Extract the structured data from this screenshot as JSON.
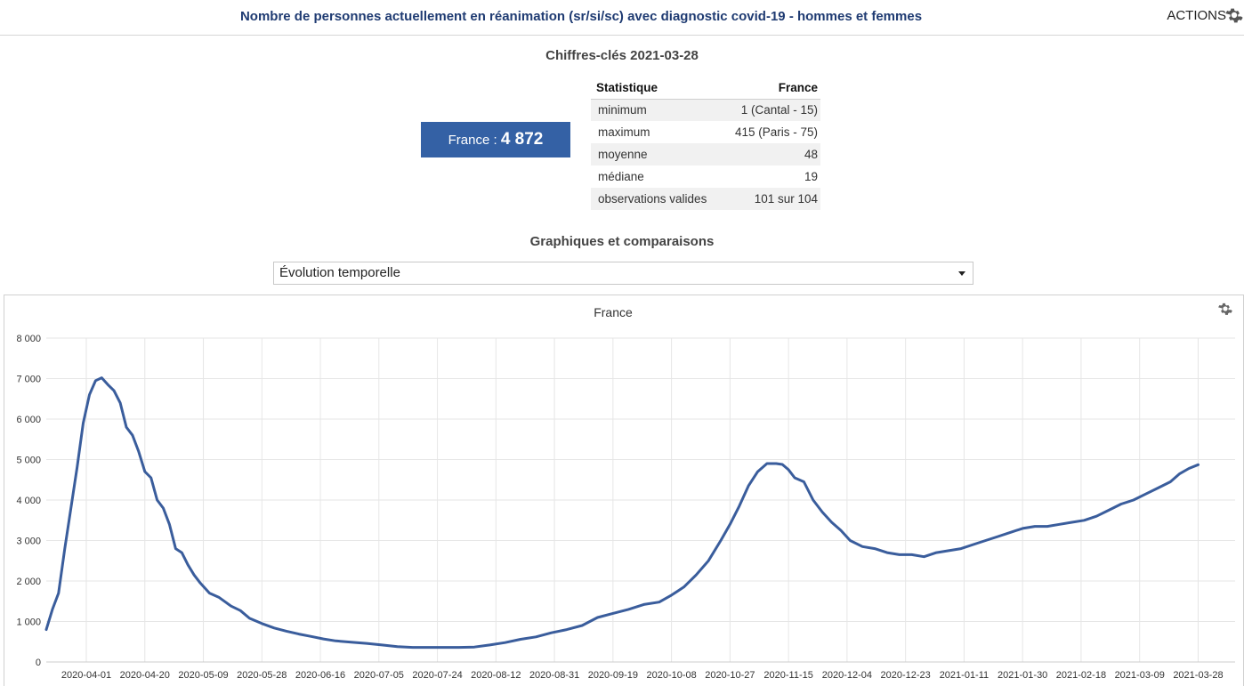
{
  "header": {
    "title": "Nombre de personnes actuellement en réanimation (sr/si/sc) avec diagnostic covid-19 - hommes et femmes",
    "actions_label": "ACTIONS"
  },
  "key_figures": {
    "title": "Chiffres-clés 2021-03-28",
    "france_label": "France : ",
    "france_value": "4 872",
    "table": {
      "headers": [
        "Statistique",
        "France"
      ],
      "rows": [
        [
          "minimum",
          "1 (Cantal - 15)"
        ],
        [
          "maximum",
          "415 (Paris - 75)"
        ],
        [
          "moyenne",
          "48"
        ],
        [
          "médiane",
          "19"
        ],
        [
          "observations valides",
          "101 sur 104"
        ]
      ]
    }
  },
  "graphs": {
    "title": "Graphiques et comparaisons",
    "selected_view": "Évolution temporelle"
  },
  "colors": {
    "line": "#3a5d9c",
    "badge": "#3461a5",
    "title": "#1f3b72"
  },
  "chart_data": {
    "type": "line",
    "title": "France",
    "ylim": [
      0,
      8000
    ],
    "yticks": [
      0,
      1000,
      2000,
      3000,
      4000,
      5000,
      6000,
      7000,
      8000
    ],
    "ytick_labels": [
      "0",
      "1 000",
      "2 000",
      "3 000",
      "4 000",
      "5 000",
      "6 000",
      "7 000",
      "8 000"
    ],
    "xlim": [
      "2020-03-19",
      "2021-04-09"
    ],
    "xtick_labels": [
      "2020-04-01",
      "2020-04-20",
      "2020-05-09",
      "2020-05-28",
      "2020-06-16",
      "2020-07-05",
      "2020-07-24",
      "2020-08-12",
      "2020-08-31",
      "2020-09-19",
      "2020-10-08",
      "2020-10-27",
      "2020-11-15",
      "2020-12-04",
      "2020-12-23",
      "2021-01-11",
      "2021-01-30",
      "2021-02-18",
      "2021-03-09",
      "2021-03-28"
    ],
    "grid": true,
    "legend": false,
    "series": [
      {
        "x": [
          "2020-03-19",
          "2020-03-21",
          "2020-03-23",
          "2020-03-25",
          "2020-03-27",
          "2020-03-29",
          "2020-03-31",
          "2020-04-02",
          "2020-04-04",
          "2020-04-06",
          "2020-04-08",
          "2020-04-10",
          "2020-04-12",
          "2020-04-14",
          "2020-04-16",
          "2020-04-18",
          "2020-04-20",
          "2020-04-22",
          "2020-04-24",
          "2020-04-26",
          "2020-04-28",
          "2020-04-30",
          "2020-05-02",
          "2020-05-04",
          "2020-05-06",
          "2020-05-08",
          "2020-05-11",
          "2020-05-14",
          "2020-05-18",
          "2020-05-21",
          "2020-05-24",
          "2020-05-28",
          "2020-06-01",
          "2020-06-05",
          "2020-06-09",
          "2020-06-13",
          "2020-06-17",
          "2020-06-21",
          "2020-06-26",
          "2020-07-01",
          "2020-07-06",
          "2020-07-11",
          "2020-07-16",
          "2020-07-21",
          "2020-07-26",
          "2020-07-31",
          "2020-08-05",
          "2020-08-10",
          "2020-08-15",
          "2020-08-20",
          "2020-08-25",
          "2020-08-30",
          "2020-09-04",
          "2020-09-09",
          "2020-09-14",
          "2020-09-19",
          "2020-09-24",
          "2020-09-29",
          "2020-10-04",
          "2020-10-08",
          "2020-10-12",
          "2020-10-16",
          "2020-10-20",
          "2020-10-24",
          "2020-10-27",
          "2020-10-30",
          "2020-11-02",
          "2020-11-05",
          "2020-11-08",
          "2020-11-11",
          "2020-11-13",
          "2020-11-15",
          "2020-11-17",
          "2020-11-20",
          "2020-11-23",
          "2020-11-26",
          "2020-11-29",
          "2020-12-02",
          "2020-12-05",
          "2020-12-09",
          "2020-12-13",
          "2020-12-17",
          "2020-12-21",
          "2020-12-25",
          "2020-12-29",
          "2021-01-02",
          "2021-01-06",
          "2021-01-10",
          "2021-01-14",
          "2021-01-18",
          "2021-01-22",
          "2021-01-26",
          "2021-01-30",
          "2021-02-03",
          "2021-02-07",
          "2021-02-11",
          "2021-02-15",
          "2021-02-19",
          "2021-02-23",
          "2021-02-27",
          "2021-03-03",
          "2021-03-07",
          "2021-03-11",
          "2021-03-15",
          "2021-03-19",
          "2021-03-22",
          "2021-03-25",
          "2021-03-28"
        ],
        "values": [
          800,
          1300,
          1700,
          2800,
          3800,
          4800,
          5900,
          6600,
          6950,
          7020,
          6850,
          6700,
          6400,
          5800,
          5600,
          5200,
          4700,
          4550,
          4000,
          3800,
          3400,
          2800,
          2700,
          2400,
          2150,
          1950,
          1700,
          1600,
          1380,
          1270,
          1080,
          950,
          840,
          760,
          690,
          630,
          570,
          520,
          490,
          460,
          420,
          380,
          360,
          360,
          360,
          360,
          370,
          420,
          480,
          560,
          620,
          720,
          800,
          900,
          1100,
          1200,
          1300,
          1420,
          1480,
          1650,
          1850,
          2150,
          2500,
          3000,
          3400,
          3850,
          4350,
          4700,
          4900,
          4900,
          4880,
          4750,
          4550,
          4450,
          4000,
          3700,
          3450,
          3250,
          3000,
          2850,
          2800,
          2700,
          2650,
          2650,
          2600,
          2700,
          2750,
          2800,
          2900,
          3000,
          3100,
          3200,
          3300,
          3350,
          3350,
          3400,
          3450,
          3500,
          3600,
          3750,
          3900,
          4000,
          4150,
          4300,
          4450,
          4650,
          4780,
          4872
        ]
      }
    ]
  }
}
